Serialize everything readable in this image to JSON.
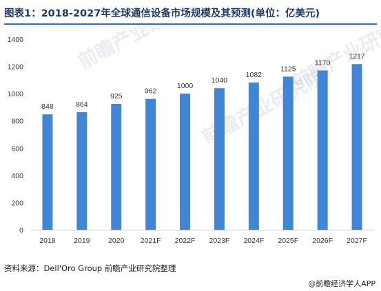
{
  "title": "图表1：2018-2027年全球通信设备市场规模及其预测(单位：亿美元)",
  "source": "资料来源：Dell'Oro Group 前瞻产业研究院整理",
  "credit": "@前瞻经济学人APP",
  "watermark": "前瞻产业研究院",
  "colors": {
    "bar": "#3f86d9",
    "title": "#1f3a66",
    "rule": "#2d6fc4"
  },
  "chart_data": {
    "type": "bar",
    "categories": [
      "2018",
      "2019",
      "2020",
      "2021F",
      "2022F",
      "2023F",
      "2024F",
      "2025F",
      "2026F",
      "2027F"
    ],
    "values": [
      848,
      864,
      925,
      962,
      1000,
      1040,
      1082,
      1125,
      1170,
      1217
    ],
    "yticks": [
      0,
      200,
      400,
      600,
      800,
      1000,
      1200,
      1400
    ],
    "ylim": [
      0,
      1400
    ],
    "grid": false,
    "legend": "none"
  }
}
